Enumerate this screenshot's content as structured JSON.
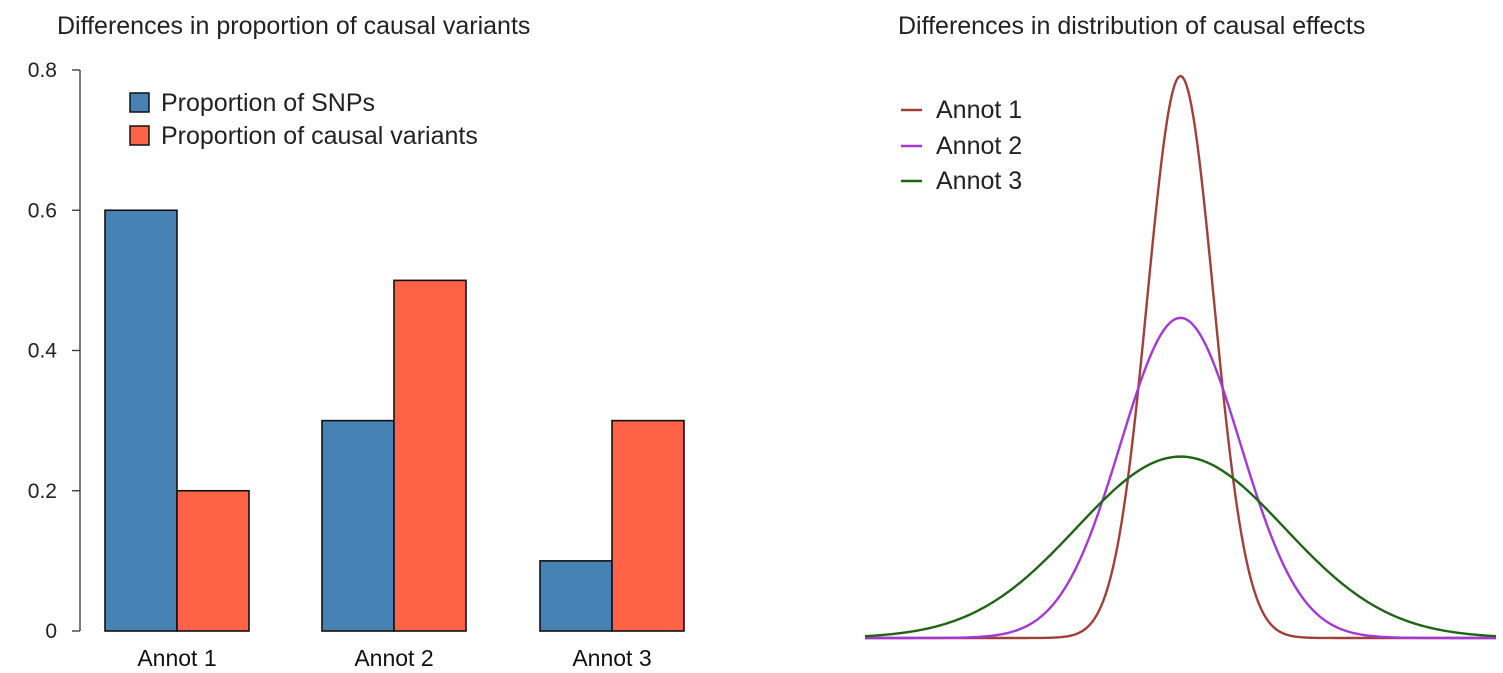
{
  "chart_data": [
    {
      "type": "bar",
      "title": "Differences in proportion of causal variants",
      "categories": [
        "Annot 1",
        "Annot 2",
        "Annot 3"
      ],
      "series": [
        {
          "name": "Proportion of SNPs",
          "color": "#4682b4",
          "values": [
            0.6,
            0.3,
            0.1
          ]
        },
        {
          "name": "Proportion of causal variants",
          "color": "#ff6347",
          "values": [
            0.2,
            0.5,
            0.3
          ]
        }
      ],
      "yticks": [
        0,
        0.2,
        0.4,
        0.6,
        0.8
      ],
      "ytick_labels": [
        "0",
        "0.2",
        "0.4",
        "0.6",
        "0.8"
      ],
      "ylim": [
        0,
        0.8
      ],
      "xlabel": "",
      "ylabel": "",
      "legend_position": "top-left"
    },
    {
      "type": "line",
      "title": "Differences in distribution of causal effects",
      "x_range": [
        -1,
        1
      ],
      "series": [
        {
          "name": "Annot 1",
          "color": "#a0403a",
          "sd": 0.105,
          "peak": 0.79
        },
        {
          "name": "Annot 2",
          "color": "#a338d8",
          "sd": 0.19,
          "peak": 0.45
        },
        {
          "name": "Annot 3",
          "color": "#1e6614",
          "sd": 0.33,
          "peak": 0.255
        }
      ],
      "axes_visible": false,
      "legend_position": "top-left"
    }
  ]
}
